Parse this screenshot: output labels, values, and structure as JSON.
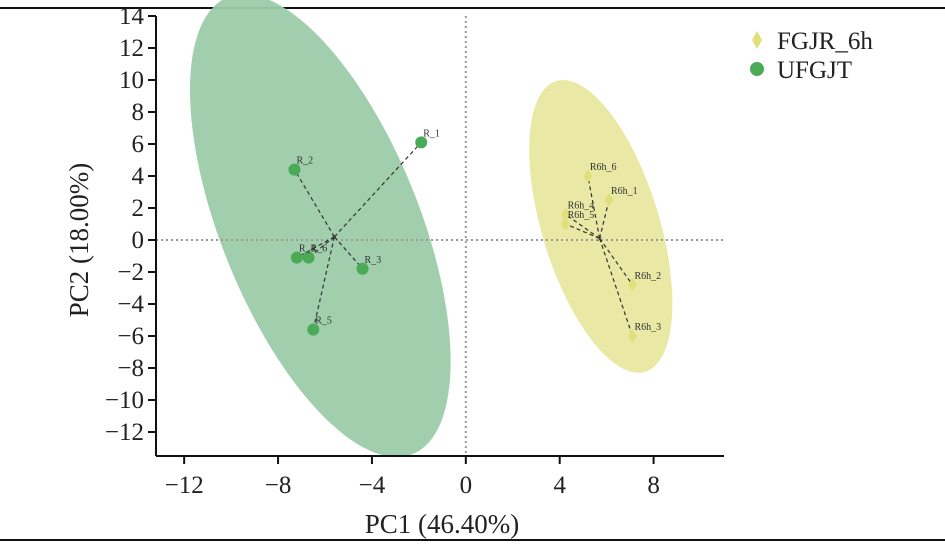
{
  "chart_data": {
    "type": "scatter",
    "title": "",
    "xlabel": "PC1 (46.40%)",
    "ylabel": "PC2 (18.00%)",
    "xlim": [
      -13.2,
      11
    ],
    "ylim": [
      -13.5,
      14
    ],
    "x_ticks": [
      -12,
      -8,
      -4,
      0,
      4,
      8
    ],
    "y_ticks": [
      -12,
      -10,
      -8,
      -6,
      -4,
      -2,
      0,
      2,
      4,
      6,
      8,
      10,
      12,
      14
    ],
    "grid": false,
    "reference_lines": {
      "x": 0,
      "y": 0
    },
    "legend_position": "top-right",
    "series": [
      {
        "name": "FGJR_6h",
        "marker": "diamond",
        "color": "#e0e07a",
        "ellipse_color": "#e8e8a0",
        "centroid": [
          5.7,
          0.1
        ],
        "ellipse": {
          "center": [
            5.75,
            0.85
          ],
          "rx": 2.5,
          "ry": 9.5,
          "angle_deg": -17
        },
        "points": [
          {
            "label": "R6h_6",
            "x": 5.2,
            "y": 4.0
          },
          {
            "label": "R6h_1",
            "x": 6.1,
            "y": 2.5
          },
          {
            "label": "R6h_4",
            "x": 4.25,
            "y": 1.6
          },
          {
            "label": "R6h_5",
            "x": 4.25,
            "y": 1.0
          },
          {
            "label": "R6h_2",
            "x": 7.1,
            "y": -2.8
          },
          {
            "label": "R6h_3",
            "x": 7.1,
            "y": -6.0
          }
        ]
      },
      {
        "name": "UFGJT",
        "marker": "circle",
        "color": "#4aaa55",
        "ellipse_color": "#9ccba9",
        "centroid": [
          -5.6,
          0.2
        ],
        "ellipse": {
          "center": [
            -6.2,
            0.9
          ],
          "rx": 10.5,
          "ry": 6.2,
          "angle_deg": 68
        },
        "points": [
          {
            "label": "R_1",
            "x": -1.9,
            "y": 6.1
          },
          {
            "label": "R_2",
            "x": -7.3,
            "y": 4.4
          },
          {
            "label": "R_4",
            "x": -7.2,
            "y": -1.1
          },
          {
            "label": "R_6",
            "x": -6.7,
            "y": -1.1
          },
          {
            "label": "R_3",
            "x": -4.4,
            "y": -1.8
          },
          {
            "label": "R_5",
            "x": -6.5,
            "y": -5.6
          }
        ]
      }
    ]
  }
}
